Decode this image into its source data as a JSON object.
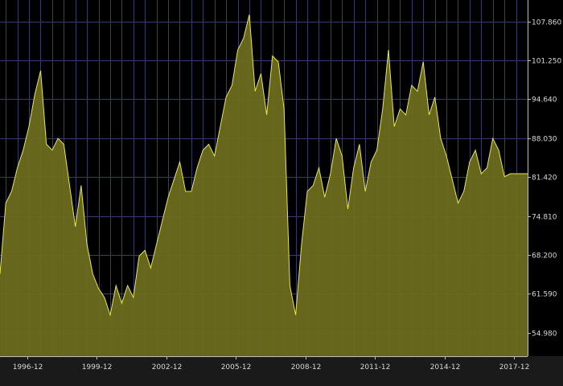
{
  "chart_data": {
    "type": "area",
    "title": "",
    "xlabel": "",
    "ylabel": "",
    "grid": true,
    "legend": "none",
    "colors": {
      "background": "#000000",
      "grid": "#3a3a6a",
      "line": "#e8e84a",
      "fill": "#6b6b1e",
      "text": "#d8d8d8",
      "axis_bar": "#1a1a1a"
    },
    "xlim": [
      "1995-10",
      "2018-07"
    ],
    "ylim": [
      51.0,
      111.5
    ],
    "x_tick_labels": [
      "1996-12",
      "1999-12",
      "2002-12",
      "2005-12",
      "2008-12",
      "2011-12",
      "2014-12",
      "2017-12"
    ],
    "y_tick_labels": [
      "107.860",
      "101.250",
      "94.640",
      "88.030",
      "81.420",
      "74.810",
      "68.200",
      "61.590",
      "54.980"
    ],
    "series": [
      {
        "x": [
          "1995-10",
          "1996-01",
          "1996-04",
          "1996-07",
          "1996-10",
          "1997-01",
          "1997-04",
          "1997-07",
          "1997-10",
          "1998-01",
          "1998-04",
          "1998-07",
          "1998-10",
          "1999-01",
          "1999-04",
          "1999-07",
          "1999-10",
          "2000-01",
          "2000-04",
          "2000-07",
          "2000-10",
          "2001-01",
          "2001-04",
          "2001-07",
          "2001-10",
          "2002-01",
          "2002-04",
          "2002-07",
          "2002-10",
          "2003-01",
          "2003-04",
          "2003-07",
          "2003-10",
          "2004-01",
          "2004-04",
          "2004-07",
          "2004-10",
          "2005-01",
          "2005-04",
          "2005-07",
          "2005-10",
          "2006-01",
          "2006-04",
          "2006-07",
          "2006-10",
          "2007-01",
          "2007-04",
          "2007-07",
          "2007-10",
          "2008-01",
          "2008-04",
          "2008-07",
          "2008-10",
          "2009-01",
          "2009-04",
          "2009-07",
          "2009-10",
          "2010-01",
          "2010-04",
          "2010-07",
          "2010-10",
          "2011-01",
          "2011-04",
          "2011-07",
          "2011-10",
          "2012-01",
          "2012-04",
          "2012-07",
          "2012-10",
          "2013-01",
          "2013-04",
          "2013-07",
          "2013-10",
          "2014-01",
          "2014-04",
          "2014-07",
          "2014-10",
          "2015-01",
          "2015-04",
          "2015-07",
          "2015-10",
          "2016-01",
          "2016-04",
          "2016-07",
          "2016-10",
          "2017-01",
          "2017-04",
          "2017-07",
          "2017-10",
          "2018-01",
          "2018-04",
          "2018-07"
        ],
        "values": [
          65.0,
          77.0,
          79.0,
          83.0,
          86.0,
          90.0,
          95.5,
          99.5,
          87.0,
          86.0,
          88.0,
          87.0,
          80.0,
          73.0,
          80.0,
          70.0,
          65.0,
          62.5,
          61.0,
          58.0,
          63.0,
          60.0,
          63.0,
          61.0,
          68.0,
          69.0,
          66.0,
          70.0,
          74.0,
          78.0,
          81.0,
          84.0,
          79.0,
          79.0,
          83.0,
          86.0,
          87.0,
          85.0,
          90.0,
          95.0,
          97.0,
          103.0,
          105.0,
          109.0,
          96.0,
          99.0,
          92.0,
          102.0,
          101.0,
          93.0,
          63.0,
          58.0,
          70.0,
          79.0,
          80.0,
          83.0,
          78.0,
          82.0,
          88.0,
          85.0,
          76.0,
          83.0,
          87.0,
          79.0,
          84.0,
          86.0,
          93.0,
          103.0,
          90.0,
          93.0,
          92.0,
          97.0,
          96.0,
          101.0,
          92.0,
          95.0,
          88.0,
          85.0,
          81.0,
          77.0,
          79.0,
          84.0,
          86.0,
          82.0,
          83.0,
          88.0,
          86.0,
          81.5,
          82.0,
          82.0,
          82.0,
          82.0
        ]
      }
    ]
  }
}
